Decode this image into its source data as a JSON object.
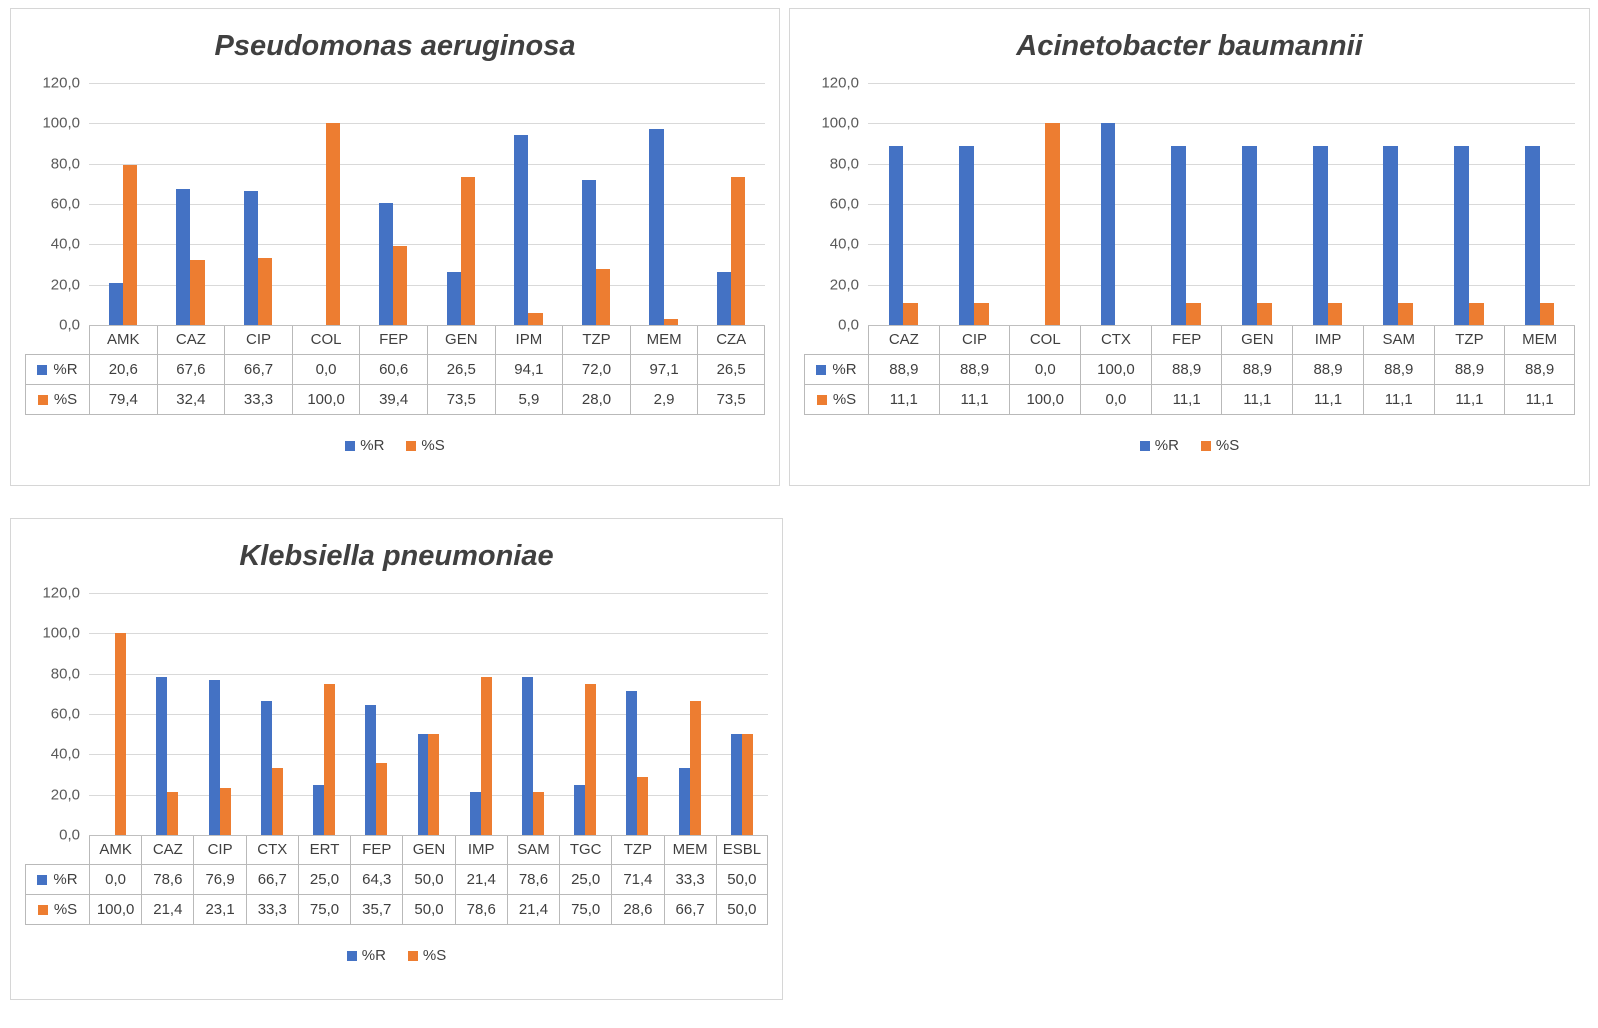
{
  "colors": {
    "series_r": "#4472C4",
    "series_s": "#ED7D31"
  },
  "chart_data": [
    {
      "type": "bar",
      "title": "Pseudomonas aeruginosa",
      "categories": [
        "AMK",
        "CAZ",
        "CIP",
        "COL",
        "FEP",
        "GEN",
        "IPM",
        "TZP",
        "MEM",
        "CZA"
      ],
      "series": [
        {
          "name": "%R",
          "color": "#4472C4",
          "values": [
            20.6,
            67.6,
            66.7,
            0.0,
            60.6,
            26.5,
            94.1,
            72.0,
            97.1,
            26.5
          ]
        },
        {
          "name": "%S",
          "color": "#ED7D31",
          "values": [
            79.4,
            32.4,
            33.3,
            100.0,
            39.4,
            73.5,
            5.9,
            28.0,
            2.9,
            73.5
          ]
        }
      ],
      "ylim": [
        0,
        120
      ],
      "ytick_step": 20,
      "decimal_separator": ",",
      "grid": true,
      "data_table": true,
      "legend": [
        "%R",
        "%S"
      ],
      "legend_position": "bottom",
      "xlabel": "",
      "ylabel": ""
    },
    {
      "type": "bar",
      "title": "Acinetobacter baumannii",
      "categories": [
        "CAZ",
        "CIP",
        "COL",
        "CTX",
        "FEP",
        "GEN",
        "IMP",
        "SAM",
        "TZP",
        "MEM"
      ],
      "series": [
        {
          "name": "%R",
          "color": "#4472C4",
          "values": [
            88.9,
            88.9,
            0.0,
            100.0,
            88.9,
            88.9,
            88.9,
            88.9,
            88.9,
            88.9
          ]
        },
        {
          "name": "%S",
          "color": "#ED7D31",
          "values": [
            11.1,
            11.1,
            100.0,
            0.0,
            11.1,
            11.1,
            11.1,
            11.1,
            11.1,
            11.1
          ]
        }
      ],
      "ylim": [
        0,
        120
      ],
      "ytick_step": 20,
      "decimal_separator": ",",
      "grid": true,
      "data_table": true,
      "legend": [
        "%R",
        "%S"
      ],
      "legend_position": "bottom",
      "xlabel": "",
      "ylabel": ""
    },
    {
      "type": "bar",
      "title": "Klebsiella pneumoniae",
      "categories": [
        "AMK",
        "CAZ",
        "CIP",
        "CTX",
        "ERT",
        "FEP",
        "GEN",
        "IMP",
        "SAM",
        "TGC",
        "TZP",
        "MEM",
        "ESBL"
      ],
      "series": [
        {
          "name": "%R",
          "color": "#4472C4",
          "values": [
            0.0,
            78.6,
            76.9,
            66.7,
            25.0,
            64.3,
            50.0,
            21.4,
            78.6,
            25.0,
            71.4,
            33.3,
            50.0
          ]
        },
        {
          "name": "%S",
          "color": "#ED7D31",
          "values": [
            100.0,
            21.4,
            23.1,
            33.3,
            75.0,
            35.7,
            50.0,
            78.6,
            21.4,
            75.0,
            28.6,
            66.7,
            50.0
          ]
        }
      ],
      "ylim": [
        0,
        120
      ],
      "ytick_step": 20,
      "decimal_separator": ",",
      "grid": true,
      "data_table": true,
      "legend": [
        "%R",
        "%S"
      ],
      "legend_position": "bottom",
      "xlabel": "",
      "ylabel": ""
    }
  ]
}
